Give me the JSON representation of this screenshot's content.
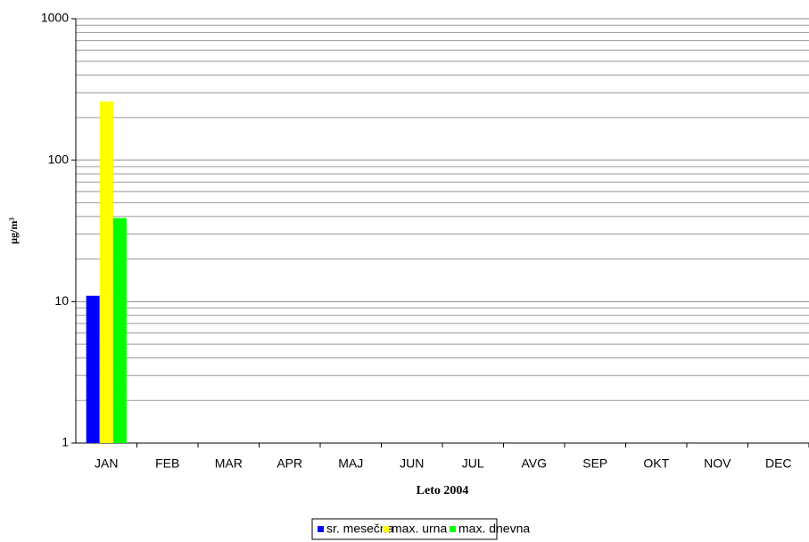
{
  "chart_data": {
    "type": "bar",
    "x_label": "Leto 2004",
    "y_label": "µg/m³",
    "categories": [
      "JAN",
      "FEB",
      "MAR",
      "APR",
      "MAJ",
      "JUN",
      "JUL",
      "AVG",
      "SEP",
      "OKT",
      "NOV",
      "DEC"
    ],
    "series": [
      {
        "name": "sr. mesečna",
        "color": "#0000ff",
        "values": [
          11,
          null,
          null,
          null,
          null,
          null,
          null,
          null,
          null,
          null,
          null,
          null
        ]
      },
      {
        "name": "max. urna",
        "color": "#ffff00",
        "values": [
          260,
          null,
          null,
          null,
          null,
          null,
          null,
          null,
          null,
          null,
          null,
          null
        ]
      },
      {
        "name": "max. dnevna",
        "color": "#00ff00",
        "values": [
          39,
          null,
          null,
          null,
          null,
          null,
          null,
          null,
          null,
          null,
          null,
          null
        ]
      }
    ],
    "ylim": [
      1,
      1000
    ],
    "yticks": [
      1,
      10,
      100,
      1000
    ],
    "log_scale": true,
    "grid": true,
    "minor_grid": [
      2,
      3,
      4,
      5,
      6,
      7,
      8,
      9,
      20,
      30,
      40,
      50,
      60,
      70,
      80,
      90,
      200,
      300,
      400,
      500,
      600,
      700,
      800,
      900
    ],
    "legend_position": "bottom"
  }
}
